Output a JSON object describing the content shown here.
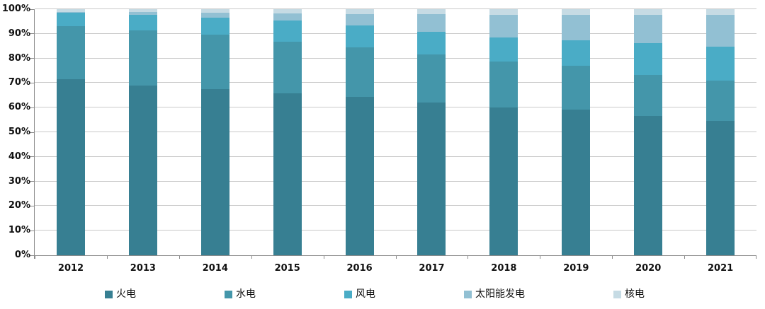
{
  "chart_data": {
    "type": "bar",
    "variant": "stacked-100-percent",
    "title": "",
    "xlabel": "",
    "ylabel": "",
    "categories": [
      "2012",
      "2013",
      "2014",
      "2015",
      "2016",
      "2017",
      "2018",
      "2019",
      "2020",
      "2021"
    ],
    "series": [
      {
        "name": "火电",
        "color": "#377f92",
        "values": [
          71.5,
          69.1,
          67.4,
          65.9,
          64.3,
          62.2,
          60.2,
          59.2,
          56.6,
          54.6
        ]
      },
      {
        "name": "水电",
        "color": "#4496aa",
        "values": [
          21.7,
          22.4,
          22.2,
          20.9,
          20.1,
          19.3,
          18.5,
          17.8,
          16.8,
          16.5
        ]
      },
      {
        "name": "风电",
        "color": "#4aacc6",
        "values": [
          5.3,
          6.1,
          7.0,
          8.6,
          8.9,
          9.2,
          9.7,
          10.4,
          12.8,
          13.8
        ]
      },
      {
        "name": "太阳能发电",
        "color": "#92c0d3",
        "values": [
          0.4,
          1.3,
          1.9,
          2.8,
          4.7,
          7.3,
          9.2,
          10.2,
          11.5,
          12.9
        ]
      },
      {
        "name": "核电",
        "color": "#c6dbe4",
        "values": [
          1.1,
          1.1,
          1.5,
          1.8,
          2.0,
          2.0,
          2.4,
          2.4,
          2.3,
          2.2
        ]
      }
    ],
    "y_ticks": [
      "0%",
      "10%",
      "20%",
      "30%",
      "40%",
      "50%",
      "60%",
      "70%",
      "80%",
      "90%",
      "100%"
    ],
    "ylim": [
      0,
      100
    ],
    "grid": true,
    "legend_position": "bottom"
  },
  "colors": {
    "background": "#ffffff",
    "gridline": "#c9c9c9",
    "axis": "#8c8c8c",
    "text": "#111111"
  }
}
